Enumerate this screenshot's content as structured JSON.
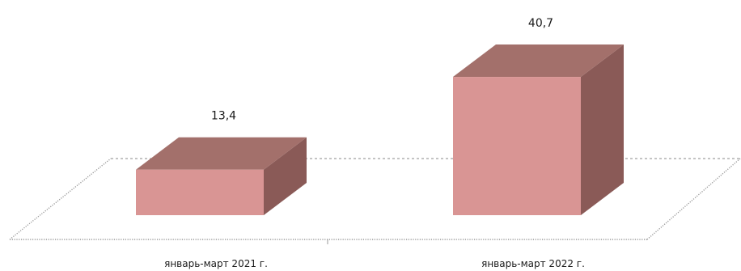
{
  "chart_data": {
    "type": "bar",
    "categories": [
      "январь-март 2021 г.",
      "январь-март 2022 г."
    ],
    "values": [
      13.4,
      40.7
    ],
    "value_labels": [
      "13,4",
      "40,7"
    ],
    "title": "",
    "xlabel": "",
    "ylabel": "",
    "ylim": [
      0,
      45
    ],
    "grid": false,
    "legend": "none",
    "colors": {
      "bar_front": "#d99594",
      "bar_top": "#a3706b",
      "bar_side": "#8a5a57",
      "floor_line": "#9a9a9a",
      "back_line": "#8a8a8a"
    }
  }
}
